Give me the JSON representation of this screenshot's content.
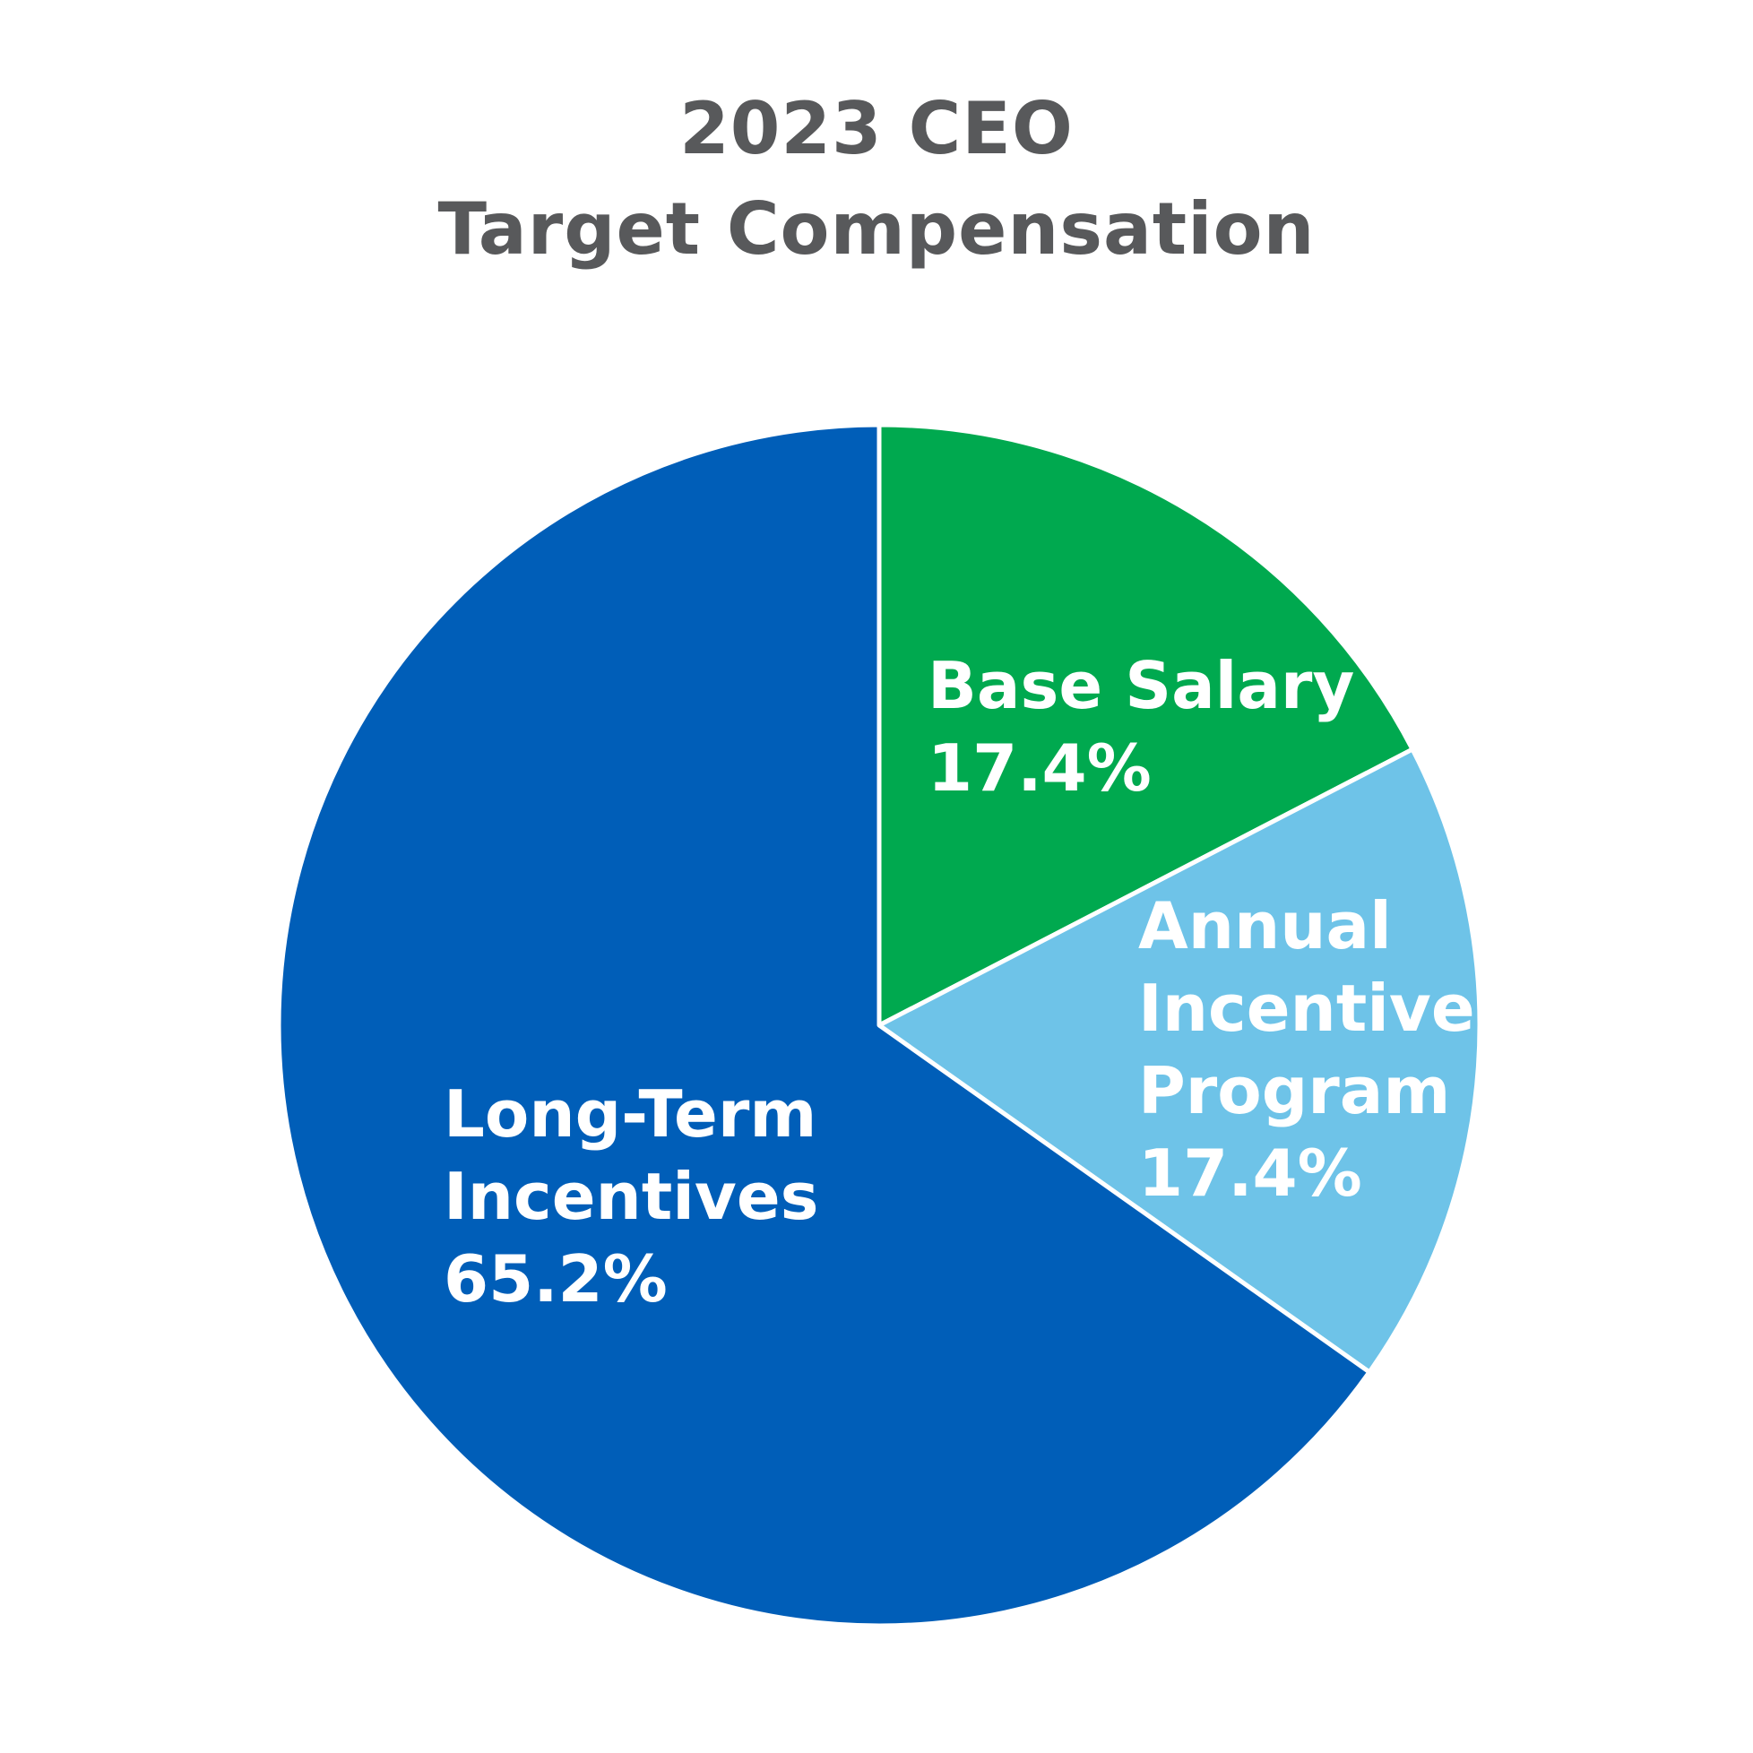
{
  "title": {
    "line1": "2023 CEO",
    "line2": "Target Compensation"
  },
  "chart_data": {
    "type": "pie",
    "slices": [
      {
        "label": "Base Salary",
        "value": 17.4,
        "value_label": "17.4%",
        "color": "#00a94f"
      },
      {
        "label": "Annual Incentive Program",
        "value": 17.4,
        "value_label": "17.4%",
        "color": "#6ec3e8"
      },
      {
        "label": "Long-Term Incentives",
        "value": 65.2,
        "value_label": "65.2%",
        "color": "#005eb8"
      }
    ],
    "start": "12 o'clock",
    "direction": "clockwise",
    "legend": "none",
    "labels": "inside slices"
  }
}
